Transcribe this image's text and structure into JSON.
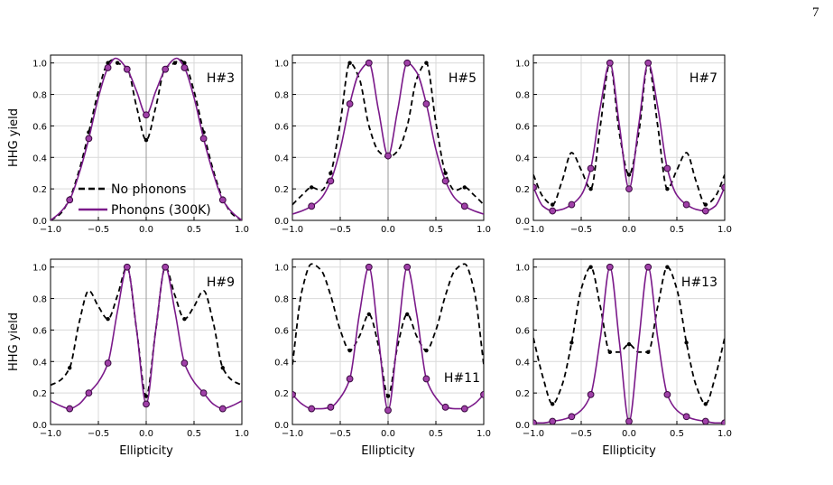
{
  "page_number": "7",
  "colors": {
    "no_phonons": "#000000",
    "phonons": "#7b1a8a",
    "grid": "#d9d9d9"
  },
  "chart_data": [
    {
      "type": "line",
      "annotation": "H#3",
      "xlabel": "",
      "ylabel": "HHG yield",
      "xlim": [
        -1.0,
        1.0
      ],
      "ylim": [
        0.0,
        1.05
      ],
      "xticks": [
        "−1.0",
        "−0.5",
        "0.0",
        "0.5",
        "1.0"
      ],
      "yticks": [
        "0.0",
        "0.2",
        "0.4",
        "0.6",
        "0.8",
        "1.0"
      ],
      "grid": true,
      "legend": {
        "position": "bottom-left",
        "entries": [
          "No phonons",
          "Phonons (300K)"
        ]
      },
      "series": [
        {
          "name": "No phonons",
          "style": "dashed",
          "x": [
            -1.0,
            -0.9,
            -0.8,
            -0.7,
            -0.6,
            -0.5,
            -0.4,
            -0.35,
            -0.3,
            -0.2,
            -0.1,
            0.0,
            0.1,
            0.2,
            0.3,
            0.35,
            0.4,
            0.5,
            0.6,
            0.7,
            0.8,
            0.9,
            1.0
          ],
          "y": [
            0.0,
            0.04,
            0.14,
            0.32,
            0.56,
            0.82,
            1.0,
            1.02,
            1.0,
            0.97,
            0.72,
            0.51,
            0.72,
            0.97,
            1.0,
            1.02,
            1.0,
            0.82,
            0.56,
            0.32,
            0.14,
            0.04,
            0.0
          ],
          "markers": [
            -0.8,
            -0.6,
            -0.4,
            -0.3,
            0.0,
            0.3,
            0.4,
            0.6,
            0.8
          ]
        },
        {
          "name": "Phonons (300K)",
          "style": "solid",
          "x": [
            -1.0,
            -0.9,
            -0.8,
            -0.7,
            -0.6,
            -0.5,
            -0.4,
            -0.32,
            -0.2,
            -0.1,
            0.0,
            0.1,
            0.2,
            0.32,
            0.4,
            0.5,
            0.6,
            0.7,
            0.8,
            0.9,
            1.0
          ],
          "y": [
            0.0,
            0.05,
            0.13,
            0.3,
            0.52,
            0.78,
            0.97,
            1.03,
            0.96,
            0.82,
            0.67,
            0.82,
            0.96,
            1.03,
            0.97,
            0.78,
            0.52,
            0.3,
            0.13,
            0.05,
            0.0
          ],
          "markers": [
            -0.8,
            -0.6,
            -0.4,
            -0.2,
            0.0,
            0.2,
            0.4,
            0.6,
            0.8
          ]
        }
      ]
    },
    {
      "type": "line",
      "annotation": "H#5",
      "xlabel": "",
      "ylabel": "",
      "xlim": [
        -1.0,
        1.0
      ],
      "ylim": [
        0.0,
        1.05
      ],
      "xticks": [
        "−1.0",
        "−0.5",
        "0.0",
        "0.5",
        "1.0"
      ],
      "yticks": [
        "0.0",
        "0.2",
        "0.4",
        "0.6",
        "0.8",
        "1.0"
      ],
      "grid": true,
      "series": [
        {
          "name": "No phonons",
          "style": "dashed",
          "x": [
            -1.0,
            -0.9,
            -0.8,
            -0.7,
            -0.6,
            -0.5,
            -0.4,
            -0.3,
            -0.2,
            -0.1,
            0.0,
            0.1,
            0.2,
            0.3,
            0.4,
            0.5,
            0.6,
            0.7,
            0.8,
            0.9,
            1.0
          ],
          "y": [
            0.1,
            0.16,
            0.21,
            0.19,
            0.3,
            0.62,
            1.0,
            0.9,
            0.6,
            0.44,
            0.4,
            0.44,
            0.6,
            0.9,
            1.0,
            0.62,
            0.3,
            0.19,
            0.21,
            0.16,
            0.1
          ],
          "markers": [
            -0.8,
            -0.6,
            -0.4,
            0.0,
            0.4,
            0.6,
            0.8
          ]
        },
        {
          "name": "Phonons (300K)",
          "style": "solid",
          "x": [
            -1.0,
            -0.9,
            -0.8,
            -0.7,
            -0.6,
            -0.5,
            -0.4,
            -0.3,
            -0.2,
            -0.1,
            0.0,
            0.1,
            0.2,
            0.3,
            0.4,
            0.5,
            0.6,
            0.7,
            0.8,
            0.9,
            1.0
          ],
          "y": [
            0.04,
            0.06,
            0.09,
            0.14,
            0.25,
            0.45,
            0.74,
            0.94,
            1.0,
            0.7,
            0.41,
            0.7,
            1.0,
            0.94,
            0.74,
            0.45,
            0.25,
            0.14,
            0.09,
            0.06,
            0.04
          ],
          "markers": [
            -0.8,
            -0.6,
            -0.4,
            -0.2,
            0.0,
            0.2,
            0.4,
            0.6,
            0.8
          ]
        }
      ]
    },
    {
      "type": "line",
      "annotation": "H#7",
      "xlabel": "",
      "ylabel": "",
      "xlim": [
        -1.0,
        1.0
      ],
      "ylim": [
        0.0,
        1.05
      ],
      "xticks": [
        "−1.0",
        "−0.5",
        "0.0",
        "0.5",
        "1.0"
      ],
      "yticks": [
        "0.0",
        "0.2",
        "0.4",
        "0.6",
        "0.8",
        "1.0"
      ],
      "grid": true,
      "series": [
        {
          "name": "No phonons",
          "style": "dashed",
          "x": [
            -1.0,
            -0.9,
            -0.8,
            -0.7,
            -0.6,
            -0.5,
            -0.4,
            -0.3,
            -0.2,
            -0.1,
            0.0,
            0.1,
            0.2,
            0.3,
            0.4,
            0.5,
            0.6,
            0.7,
            0.8,
            0.9,
            1.0
          ],
          "y": [
            0.29,
            0.15,
            0.1,
            0.25,
            0.43,
            0.32,
            0.2,
            0.6,
            1.0,
            0.55,
            0.29,
            0.55,
            1.0,
            0.6,
            0.2,
            0.32,
            0.43,
            0.25,
            0.1,
            0.15,
            0.29
          ],
          "markers": [
            -0.8,
            -0.4,
            -0.2,
            0.0,
            0.2,
            0.4,
            0.8
          ]
        },
        {
          "name": "Phonons (300K)",
          "style": "solid",
          "x": [
            -1.0,
            -0.9,
            -0.8,
            -0.7,
            -0.6,
            -0.5,
            -0.4,
            -0.3,
            -0.2,
            -0.1,
            0.0,
            0.1,
            0.2,
            0.3,
            0.4,
            0.5,
            0.6,
            0.7,
            0.8,
            0.9,
            1.0
          ],
          "y": [
            0.21,
            0.09,
            0.06,
            0.07,
            0.1,
            0.16,
            0.33,
            0.72,
            1.0,
            0.6,
            0.2,
            0.6,
            1.0,
            0.72,
            0.33,
            0.16,
            0.1,
            0.07,
            0.06,
            0.09,
            0.21
          ],
          "markers": [
            -1.0,
            -0.8,
            -0.6,
            -0.4,
            -0.2,
            0.0,
            0.2,
            0.4,
            0.6,
            0.8,
            1.0
          ]
        }
      ]
    },
    {
      "type": "line",
      "annotation": "H#9",
      "xlabel": "Ellipticity",
      "ylabel": "HHG yield",
      "xlim": [
        -1.0,
        1.0
      ],
      "ylim": [
        0.0,
        1.05
      ],
      "xticks": [
        "−1.0",
        "−0.5",
        "0.0",
        "0.5",
        "1.0"
      ],
      "yticks": [
        "0.0",
        "0.2",
        "0.4",
        "0.6",
        "0.8",
        "1.0"
      ],
      "grid": true,
      "series": [
        {
          "name": "No phonons",
          "style": "dashed",
          "x": [
            -1.0,
            -0.9,
            -0.8,
            -0.7,
            -0.6,
            -0.5,
            -0.4,
            -0.3,
            -0.2,
            -0.1,
            0.0,
            0.1,
            0.2,
            0.3,
            0.4,
            0.5,
            0.6,
            0.7,
            0.8,
            0.9,
            1.0
          ],
          "y": [
            0.25,
            0.28,
            0.36,
            0.65,
            0.85,
            0.75,
            0.67,
            0.82,
            1.0,
            0.6,
            0.18,
            0.6,
            1.0,
            0.82,
            0.67,
            0.75,
            0.85,
            0.65,
            0.36,
            0.28,
            0.25
          ],
          "markers": [
            -0.8,
            -0.4,
            -0.2,
            0.0,
            0.2,
            0.4,
            0.8
          ]
        },
        {
          "name": "Phonons (300K)",
          "style": "solid",
          "x": [
            -1.0,
            -0.9,
            -0.8,
            -0.7,
            -0.6,
            -0.5,
            -0.4,
            -0.3,
            -0.2,
            -0.1,
            0.0,
            0.1,
            0.2,
            0.3,
            0.4,
            0.5,
            0.6,
            0.7,
            0.8,
            0.9,
            1.0
          ],
          "y": [
            0.15,
            0.12,
            0.1,
            0.13,
            0.2,
            0.27,
            0.39,
            0.72,
            1.0,
            0.6,
            0.13,
            0.6,
            1.0,
            0.72,
            0.39,
            0.27,
            0.2,
            0.13,
            0.1,
            0.12,
            0.15
          ],
          "markers": [
            -0.8,
            -0.6,
            -0.4,
            -0.2,
            0.0,
            0.2,
            0.4,
            0.6,
            0.8
          ]
        }
      ]
    },
    {
      "type": "line",
      "annotation": "H#11",
      "xlabel": "Ellipticity",
      "ylabel": "",
      "xlim": [
        -1.0,
        1.0
      ],
      "ylim": [
        0.0,
        1.05
      ],
      "xticks": [
        "−1.0",
        "−0.5",
        "0.0",
        "0.5",
        "1.0"
      ],
      "yticks": [
        "0.0",
        "0.2",
        "0.4",
        "0.6",
        "0.8",
        "1.0"
      ],
      "grid": true,
      "series": [
        {
          "name": "No phonons",
          "style": "dashed",
          "x": [
            -1.0,
            -0.9,
            -0.8,
            -0.7,
            -0.6,
            -0.5,
            -0.4,
            -0.3,
            -0.2,
            -0.1,
            0.0,
            0.1,
            0.2,
            0.3,
            0.4,
            0.5,
            0.6,
            0.7,
            0.8,
            0.9,
            1.0
          ],
          "y": [
            0.38,
            0.85,
            1.02,
            0.98,
            0.82,
            0.6,
            0.47,
            0.56,
            0.7,
            0.5,
            0.18,
            0.5,
            0.7,
            0.56,
            0.47,
            0.6,
            0.82,
            0.98,
            1.02,
            0.85,
            0.38
          ],
          "markers": [
            -0.4,
            -0.2,
            0.0,
            0.2,
            0.4
          ]
        },
        {
          "name": "Phonons (300K)",
          "style": "solid",
          "x": [
            -1.0,
            -0.9,
            -0.8,
            -0.7,
            -0.6,
            -0.5,
            -0.4,
            -0.3,
            -0.2,
            -0.1,
            0.0,
            0.1,
            0.2,
            0.3,
            0.4,
            0.5,
            0.6,
            0.7,
            0.8,
            0.9,
            1.0
          ],
          "y": [
            0.19,
            0.13,
            0.1,
            0.1,
            0.11,
            0.17,
            0.29,
            0.7,
            1.0,
            0.55,
            0.09,
            0.55,
            1.0,
            0.7,
            0.29,
            0.17,
            0.11,
            0.1,
            0.1,
            0.13,
            0.19
          ],
          "markers": [
            -1.0,
            -0.8,
            -0.6,
            -0.4,
            -0.2,
            0.0,
            0.2,
            0.4,
            0.6,
            0.8,
            1.0
          ]
        }
      ]
    },
    {
      "type": "line",
      "annotation": "H#13",
      "xlabel": "Ellipticity",
      "ylabel": "",
      "xlim": [
        -1.0,
        1.0
      ],
      "ylim": [
        0.0,
        1.05
      ],
      "xticks": [
        "−1.0",
        "−0.5",
        "0.0",
        "0.5",
        "1.0"
      ],
      "yticks": [
        "0.0",
        "0.2",
        "0.4",
        "0.6",
        "0.8",
        "1.0"
      ],
      "grid": true,
      "series": [
        {
          "name": "No phonons",
          "style": "dashed",
          "x": [
            -1.0,
            -0.9,
            -0.8,
            -0.7,
            -0.6,
            -0.5,
            -0.4,
            -0.3,
            -0.2,
            -0.1,
            0.0,
            0.1,
            0.2,
            0.3,
            0.4,
            0.5,
            0.6,
            0.7,
            0.8,
            0.9,
            1.0
          ],
          "y": [
            0.55,
            0.3,
            0.13,
            0.25,
            0.52,
            0.86,
            1.0,
            0.75,
            0.46,
            0.46,
            0.51,
            0.46,
            0.46,
            0.75,
            1.0,
            0.86,
            0.52,
            0.25,
            0.13,
            0.3,
            0.55
          ],
          "markers": [
            -0.8,
            -0.6,
            -0.4,
            -0.2,
            0.0,
            0.2,
            0.4,
            0.6,
            0.8
          ]
        },
        {
          "name": "Phonons (300K)",
          "style": "solid",
          "x": [
            -1.0,
            -0.9,
            -0.8,
            -0.7,
            -0.6,
            -0.5,
            -0.4,
            -0.3,
            -0.2,
            -0.1,
            0.0,
            0.1,
            0.2,
            0.3,
            0.4,
            0.5,
            0.6,
            0.7,
            0.8,
            0.9,
            1.0
          ],
          "y": [
            0.01,
            0.01,
            0.02,
            0.03,
            0.05,
            0.09,
            0.19,
            0.55,
            1.0,
            0.52,
            0.02,
            0.52,
            1.0,
            0.55,
            0.19,
            0.09,
            0.05,
            0.03,
            0.02,
            0.01,
            0.01
          ],
          "markers": [
            -1.0,
            -0.8,
            -0.6,
            -0.4,
            -0.2,
            0.0,
            0.2,
            0.4,
            0.6,
            0.8,
            1.0
          ]
        }
      ]
    }
  ]
}
